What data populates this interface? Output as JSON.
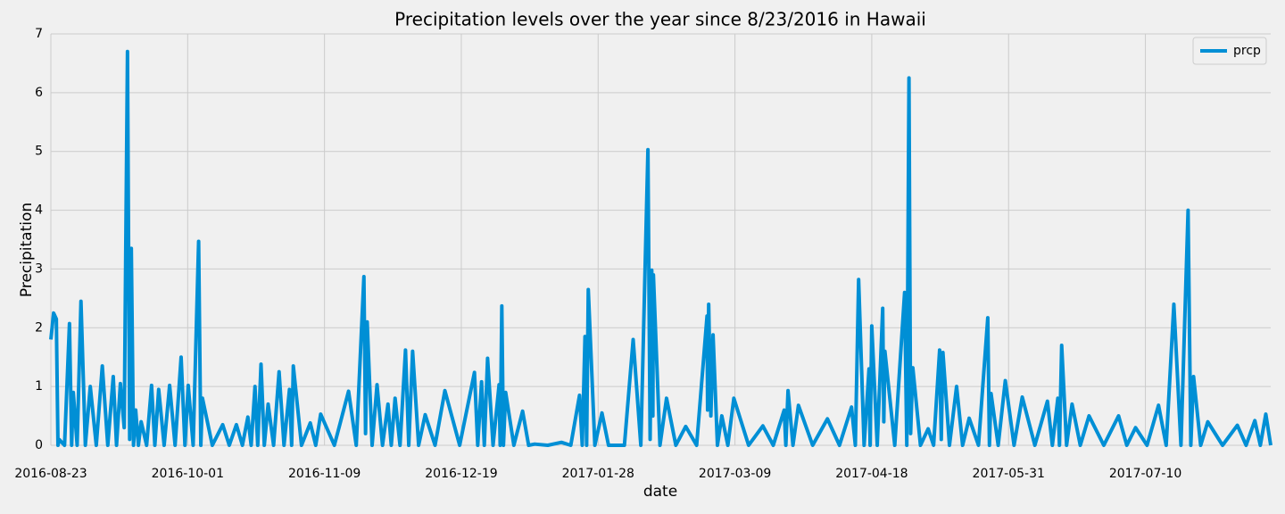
{
  "chart_data": {
    "type": "line",
    "title": "Precipitation levels over the year since 8/23/2016 in Hawaii",
    "x_label": "date",
    "y_label": "Precipitation",
    "x": [
      0,
      5,
      10,
      13,
      15,
      25,
      34,
      38,
      41,
      48,
      55,
      63,
      72,
      83,
      94,
      104,
      114,
      120,
      127,
      134,
      140,
      144,
      147,
      151,
      155,
      160,
      165,
      175,
      184,
      190,
      197,
      207,
      217,
      227,
      238,
      245,
      251,
      260,
      270,
      274,
      277,
      295,
      314,
      326,
      339,
      350,
      360,
      366,
      373,
      378,
      384,
      390,
      397,
      407,
      417,
      426,
      436,
      440,
      443,
      458,
      474,
      484,
      493,
      518,
      544,
      558,
      572,
      575,
      578,
      587,
      596,
      606,
      616,
      622,
      629,
      638,
      648,
      654,
      661,
      672,
      684,
      702,
      720,
      747,
      774,
      780,
      787,
      792,
      798,
      808,
      819,
      821,
      824,
      827,
      831,
      846,
      862,
      873,
      884,
      908,
      933,
      950,
      966,
      971,
      976,
      979,
      982,
      994,
      1007,
      1019,
      1031,
      1048,
      1064,
      1078,
      1091,
      1095,
      1098,
      1100,
      1101,
      1113,
      1125,
      1142,
      1160,
      1180,
      1199,
      1200,
      1202,
      1206,
      1210,
      1218,
      1226,
      1237,
      1248,
      1275,
      1301,
      1320,
      1340,
      1343,
      1347,
      1356,
      1366,
      1392,
      1419,
      1441,
      1463,
      1470,
      1476,
      1486,
      1495,
      1497,
      1500,
      1510,
      1520,
      1522,
      1524,
      1542,
      1560,
      1564,
      1568,
      1571,
      1575,
      1589,
      1603,
      1613,
      1624,
      1627,
      1630,
      1642,
      1655,
      1666,
      1678,
      1695,
      1712,
      1715,
      1718,
      1731,
      1744,
      1760,
      1775,
      1798,
      1821,
      1830,
      1840,
      1843,
      1847,
      1856,
      1866,
      1881,
      1897,
      1924,
      1951,
      1966,
      1982,
      2003,
      2024,
      2038,
      2052,
      2065,
      2078,
      2083,
      2088,
      2101,
      2114,
      2141,
      2168,
      2184,
      2200,
      2210,
      2220,
      2229
    ],
    "series": [
      {
        "name": "prcp",
        "color": "#008fd5",
        "values": [
          1.8,
          2.25,
          2.15,
          0,
          0.1,
          0,
          2.07,
          0,
          0.9,
          0,
          2.45,
          0,
          1.0,
          0,
          1.35,
          0,
          1.17,
          0,
          1.05,
          0.3,
          6.7,
          0.1,
          3.35,
          0,
          0.6,
          0,
          0.4,
          0,
          1.02,
          0,
          0.95,
          0,
          1.02,
          0,
          1.5,
          0,
          1.02,
          0,
          3.47,
          0,
          0.8,
          0,
          0.35,
          0,
          0.35,
          0,
          0.48,
          0,
          1.0,
          0,
          1.38,
          0,
          0.7,
          0,
          1.25,
          0,
          0.95,
          0,
          1.35,
          0,
          0.38,
          0,
          0.53,
          0,
          0.92,
          0,
          2.87,
          0.2,
          2.1,
          0,
          1.03,
          0,
          0.7,
          0,
          0.8,
          0,
          1.62,
          0,
          1.6,
          0,
          0.52,
          0,
          0.93,
          0,
          1.24,
          0,
          1.08,
          0,
          1.48,
          0,
          1.03,
          0,
          2.37,
          0,
          0.9,
          0,
          0.58,
          0,
          0.02,
          0,
          0.05,
          0,
          0.85,
          0,
          1.85,
          0,
          2.65,
          0,
          0.55,
          0,
          0,
          0,
          1.8,
          0,
          5.03,
          0.1,
          2.98,
          0.5,
          2.9,
          0,
          0.8,
          0,
          0.32,
          0,
          2.2,
          0.6,
          2.4,
          0.5,
          1.88,
          0,
          0.5,
          0,
          0.8,
          0,
          0.33,
          0,
          0.6,
          0,
          0.93,
          0,
          0.68,
          0,
          0.45,
          0,
          0.65,
          0,
          2.82,
          0,
          1.3,
          0,
          2.03,
          0,
          2.33,
          0.4,
          1.6,
          0,
          2.6,
          0,
          6.25,
          0.2,
          1.32,
          0,
          0.28,
          0,
          1.62,
          0.1,
          1.58,
          0,
          1.0,
          0,
          0.46,
          0,
          2.17,
          0,
          0.88,
          0,
          1.1,
          0,
          0.82,
          0,
          0.75,
          0,
          0.8,
          0,
          1.7,
          0,
          0.7,
          0,
          0.5,
          0,
          0.5,
          0,
          0.3,
          0,
          0.68,
          0,
          2.4,
          0,
          4.0,
          0,
          1.17,
          0,
          0.4,
          0,
          0.34,
          0,
          0.42,
          0,
          0.53,
          0
        ]
      }
    ],
    "xlim": [
      0,
      2229
    ],
    "xticks": [
      {
        "value": 0,
        "label": "2016-08-23"
      },
      {
        "value": 250,
        "label": "2016-10-01"
      },
      {
        "value": 500,
        "label": "2016-11-09"
      },
      {
        "value": 750,
        "label": "2016-12-19"
      },
      {
        "value": 1000,
        "label": "2017-01-28"
      },
      {
        "value": 1250,
        "label": "2017-03-09"
      },
      {
        "value": 1500,
        "label": "2017-04-18"
      },
      {
        "value": 1750,
        "label": "2017-05-31"
      },
      {
        "value": 2000,
        "label": "2017-07-10"
      }
    ],
    "ylim": [
      0,
      7
    ],
    "yticks": [
      0,
      1,
      2,
      3,
      4,
      5,
      6,
      7
    ],
    "grid": true,
    "legend": "upper right"
  }
}
